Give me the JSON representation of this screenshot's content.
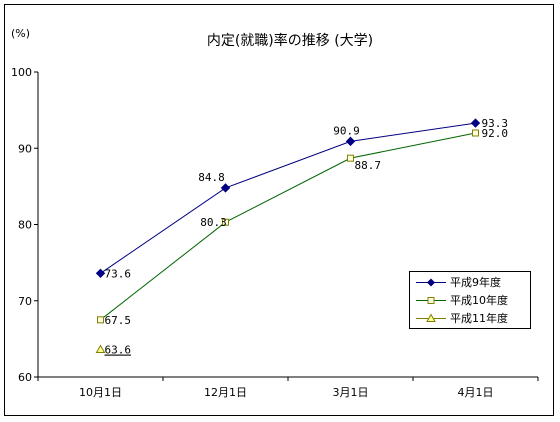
{
  "chart_data": {
    "type": "line",
    "title": "内定(就職)率の推移 (大学)",
    "ylabel": "(%)",
    "xlabel": "",
    "categories": [
      "10月1日",
      "12月1日",
      "3月1日",
      "4月1日"
    ],
    "ylim": [
      60,
      100
    ],
    "yticks": [
      60,
      70,
      80,
      90,
      100
    ],
    "grid": false,
    "legend_position": "right",
    "series": [
      {
        "name": "平成9年度",
        "values": [
          73.6,
          84.8,
          90.9,
          93.3
        ],
        "labels": [
          "73.6",
          "84.8",
          "90.9",
          "93.3"
        ],
        "color": "#000080",
        "marker": "diamond"
      },
      {
        "name": "平成10年度",
        "values": [
          67.5,
          80.3,
          88.7,
          92.0
        ],
        "labels": [
          "67.5",
          "80.3",
          "88.7",
          "92.0"
        ],
        "color": "#006400",
        "marker": "square"
      },
      {
        "name": "平成11年度",
        "values": [
          63.6,
          null,
          null,
          null
        ],
        "labels": [
          "63.6",
          null,
          null,
          null
        ],
        "color": "#808000",
        "marker": "triangle"
      }
    ]
  }
}
